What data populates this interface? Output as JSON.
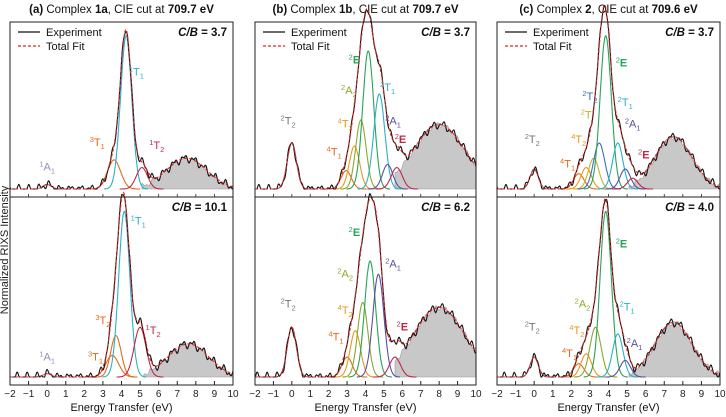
{
  "figure": {
    "ylabel": "Normalized RIXS Intensity",
    "legend": {
      "experiment": "Experiment",
      "fit": "Total Fit"
    }
  },
  "chart_data": [
    {
      "type": "line",
      "panel_label": "(a)",
      "title_pre": "Complex ",
      "title_bold": "1a",
      "title_mid": ", CIE cut at ",
      "title_energy": "709.7 eV",
      "xlabel": "Energy Transfer (eV)",
      "xlim": [
        -2,
        10
      ],
      "xticks": [
        -2,
        -1,
        0,
        1,
        2,
        3,
        4,
        5,
        6,
        7,
        8,
        9,
        10
      ],
      "subplots": [
        {
          "cb_prefix": "C/B",
          "cb_value": "= 3.7",
          "ymax": 1.05,
          "bg": {
            "center": 7.5,
            "width": 1.1,
            "amp": 0.2
          },
          "peaks": [
            {
              "pre": "1",
              "main": "A",
              "sub": "1",
              "center": 0.0,
              "amp": 0.03,
              "width": 0.22,
              "color": "#8f8fb8",
              "lx": 0.0,
              "ly": 0.12
            },
            {
              "pre": "3",
              "main": "T",
              "sub": "1",
              "center": 3.6,
              "amp": 0.19,
              "width": 0.35,
              "color": "#e66a1a",
              "lx": 2.7,
              "ly": 0.28
            },
            {
              "pre": "1",
              "main": "T",
              "sub": "1",
              "center": 4.25,
              "amp": 1.0,
              "width": 0.3,
              "color": "#2bb1c9",
              "lx": 4.8,
              "ly": 0.74
            },
            {
              "pre": "1",
              "main": "T",
              "sub": "2",
              "center": 5.1,
              "amp": 0.14,
              "width": 0.3,
              "color": "#c0284b",
              "lx": 5.9,
              "ly": 0.26
            }
          ]
        },
        {
          "cb_prefix": "C/B",
          "cb_value": "= 10.1",
          "ymax": 1.05,
          "bg": {
            "center": 7.6,
            "width": 1.1,
            "amp": 0.2
          },
          "peaks": [
            {
              "pre": "1",
              "main": "A",
              "sub": "1",
              "center": 0.0,
              "amp": 0.02,
              "width": 0.22,
              "color": "#8f8fb8",
              "lx": 0.0,
              "ly": 0.1
            },
            {
              "pre": "3",
              "main": "T",
              "sub": "1",
              "center": 3.5,
              "amp": 0.13,
              "width": 0.35,
              "color": "#e66a1a",
              "lx": 2.6,
              "ly": 0.1
            },
            {
              "pre": "3",
              "main": "T",
              "sub": "2",
              "center": 3.7,
              "amp": 0.25,
              "width": 0.28,
              "color": "#e66a1a",
              "lx": 3.0,
              "ly": 0.32
            },
            {
              "pre": "1",
              "main": "T",
              "sub": "1",
              "center": 4.15,
              "amp": 1.0,
              "width": 0.3,
              "color": "#2bb1c9",
              "lx": 4.9,
              "ly": 0.92
            },
            {
              "pre": "1",
              "main": "T",
              "sub": "2",
              "center": 5.0,
              "amp": 0.3,
              "width": 0.32,
              "color": "#c0284b",
              "lx": 5.7,
              "ly": 0.26
            }
          ]
        }
      ]
    },
    {
      "type": "line",
      "panel_label": "(b)",
      "title_pre": "Complex ",
      "title_bold": "1b",
      "title_mid": ", CIE cut at ",
      "title_energy": "709.7 eV",
      "xlabel": "Energy Transfer (eV)",
      "xlim": [
        -2,
        10
      ],
      "xticks": [
        -2,
        -1,
        0,
        1,
        2,
        3,
        4,
        5,
        6,
        7,
        8,
        9,
        10
      ],
      "subplots": [
        {
          "cb_prefix": "C/B",
          "cb_value": "= 3.7",
          "ymax": 1.05,
          "bg": {
            "center": 8.0,
            "width": 1.4,
            "amp": 0.42
          },
          "peaks": [
            {
              "pre": "2",
              "main": "T",
              "sub": "2",
              "center": 0.0,
              "amp": 0.3,
              "width": 0.25,
              "color": "#777777",
              "lx": -0.2,
              "ly": 0.42
            },
            {
              "pre": "4",
              "main": "T",
              "sub": "1",
              "center": 2.95,
              "amp": 0.12,
              "width": 0.28,
              "color": "#e66a1a",
              "lx": 2.3,
              "ly": 0.22
            },
            {
              "pre": "4",
              "main": "T",
              "sub": "2",
              "center": 3.4,
              "amp": 0.28,
              "width": 0.28,
              "color": "#e69a1a",
              "lx": 2.9,
              "ly": 0.4
            },
            {
              "pre": "2",
              "main": "A",
              "sub": "2",
              "center": 3.75,
              "amp": 0.45,
              "width": 0.28,
              "color": "#8aa82a",
              "lx": 3.1,
              "ly": 0.62
            },
            {
              "pre": "2",
              "main": "E",
              "sub": "",
              "center": 4.15,
              "amp": 0.9,
              "width": 0.3,
              "color": "#27a35a",
              "lx": 3.4,
              "ly": 0.82
            },
            {
              "pre": "2",
              "main": "T",
              "sub": "1",
              "center": 4.75,
              "amp": 0.62,
              "width": 0.3,
              "color": "#2bb1c9",
              "lx": 5.2,
              "ly": 0.64
            },
            {
              "pre": "2",
              "main": "A",
              "sub": "1",
              "center": 5.2,
              "amp": 0.16,
              "width": 0.28,
              "color": "#5a4fa0",
              "lx": 5.5,
              "ly": 0.42
            },
            {
              "pre": "2",
              "main": "E",
              "sub": "",
              "center": 5.7,
              "amp": 0.14,
              "width": 0.3,
              "color": "#c0284b",
              "lx": 5.9,
              "ly": 0.3
            }
          ]
        },
        {
          "cb_prefix": "C/B",
          "cb_value": "= 6.2",
          "ymax": 1.05,
          "bg": {
            "center": 8.0,
            "width": 1.4,
            "amp": 0.42
          },
          "peaks": [
            {
              "pre": "2",
              "main": "T",
              "sub": "2",
              "center": 0.0,
              "amp": 0.3,
              "width": 0.25,
              "color": "#777777",
              "lx": -0.2,
              "ly": 0.42
            },
            {
              "pre": "4",
              "main": "T",
              "sub": "1",
              "center": 3.0,
              "amp": 0.12,
              "width": 0.28,
              "color": "#e66a1a",
              "lx": 2.4,
              "ly": 0.22
            },
            {
              "pre": "4",
              "main": "T",
              "sub": "2",
              "center": 3.45,
              "amp": 0.28,
              "width": 0.28,
              "color": "#e69a1a",
              "lx": 2.9,
              "ly": 0.38
            },
            {
              "pre": "2",
              "main": "A",
              "sub": "2",
              "center": 3.85,
              "amp": 0.45,
              "width": 0.28,
              "color": "#8aa82a",
              "lx": 2.9,
              "ly": 0.6
            },
            {
              "pre": "2",
              "main": "E",
              "sub": "",
              "center": 4.25,
              "amp": 0.7,
              "width": 0.3,
              "color": "#27a35a",
              "lx": 3.4,
              "ly": 0.85
            },
            {
              "pre": "2",
              "main": "A",
              "sub": "1",
              "center": 4.7,
              "amp": 0.62,
              "width": 0.3,
              "color": "#5a4fa0",
              "lx": 5.5,
              "ly": 0.66
            },
            {
              "pre": "2",
              "main": "E",
              "sub": "",
              "center": 5.6,
              "amp": 0.12,
              "width": 0.3,
              "color": "#c0284b",
              "lx": 6.0,
              "ly": 0.28
            }
          ]
        }
      ]
    },
    {
      "type": "line",
      "panel_label": "(c)",
      "title_pre": "Complex ",
      "title_bold": "2",
      "title_mid": ", CIE cut at ",
      "title_energy": "709.6 eV",
      "xlabel": "Energy Transfer (eV)",
      "xlim": [
        -2,
        10
      ],
      "xticks": [
        -2,
        -1,
        0,
        1,
        2,
        3,
        4,
        5,
        6,
        7,
        8,
        9,
        10
      ],
      "subplots": [
        {
          "cb_prefix": "C/B",
          "cb_value": "= 3.7",
          "ymax": 1.05,
          "bg": {
            "center": 7.5,
            "width": 1.0,
            "amp": 0.34
          },
          "peaks": [
            {
              "pre": "2",
              "main": "T",
              "sub": "2",
              "center": 0.0,
              "amp": 0.13,
              "width": 0.22,
              "color": "#777777",
              "lx": -0.1,
              "ly": 0.3
            },
            {
              "pre": "4",
              "main": "T",
              "sub": "1",
              "center": 2.4,
              "amp": 0.1,
              "width": 0.28,
              "color": "#e66a1a",
              "lx": 1.8,
              "ly": 0.14
            },
            {
              "pre": "4",
              "main": "T",
              "sub": "2",
              "center": 2.8,
              "amp": 0.14,
              "width": 0.28,
              "color": "#e69a1a",
              "lx": 2.4,
              "ly": 0.3
            },
            {
              "pre": "2",
              "main": "T",
              "sub": "",
              "center": 3.2,
              "amp": 0.2,
              "width": 0.28,
              "color": "#c9b02a",
              "lx": 2.8,
              "ly": 0.46
            },
            {
              "pre": "2",
              "main": "T",
              "sub": "2",
              "center": 3.5,
              "amp": 0.3,
              "width": 0.3,
              "color": "#3b6fb8",
              "lx": 3.0,
              "ly": 0.58
            },
            {
              "pre": "2",
              "main": "E",
              "sub": "",
              "center": 3.85,
              "amp": 1.0,
              "width": 0.3,
              "color": "#27a35a",
              "lx": 4.7,
              "ly": 0.8
            },
            {
              "pre": "2",
              "main": "T",
              "sub": "1",
              "center": 4.5,
              "amp": 0.3,
              "width": 0.28,
              "color": "#2bb1c9",
              "lx": 4.9,
              "ly": 0.54
            },
            {
              "pre": "2",
              "main": "A",
              "sub": "1",
              "center": 4.9,
              "amp": 0.13,
              "width": 0.28,
              "color": "#5a4fa0",
              "lx": 5.3,
              "ly": 0.4
            },
            {
              "pre": "2",
              "main": "E",
              "sub": "",
              "center": 5.3,
              "amp": 0.07,
              "width": 0.28,
              "color": "#c0284b",
              "lx": 5.9,
              "ly": 0.2
            }
          ]
        },
        {
          "cb_prefix": "C/B",
          "cb_value": "= 4.0",
          "ymax": 1.05,
          "bg": {
            "center": 7.5,
            "width": 1.0,
            "amp": 0.33
          },
          "peaks": [
            {
              "pre": "2",
              "main": "T",
              "sub": "2",
              "center": 0.0,
              "amp": 0.12,
              "width": 0.22,
              "color": "#777777",
              "lx": -0.1,
              "ly": 0.28
            },
            {
              "pre": "4",
              "main": "T",
              "sub": "1",
              "center": 2.4,
              "amp": 0.08,
              "width": 0.28,
              "color": "#e66a1a",
              "lx": 1.9,
              "ly": 0.12
            },
            {
              "pre": "4",
              "main": "T",
              "sub": "2",
              "center": 2.8,
              "amp": 0.14,
              "width": 0.28,
              "color": "#e69a1a",
              "lx": 2.3,
              "ly": 0.26
            },
            {
              "pre": "2",
              "main": "A",
              "sub": "2",
              "center": 3.3,
              "amp": 0.3,
              "width": 0.3,
              "color": "#8aa82a",
              "lx": 2.6,
              "ly": 0.42
            },
            {
              "pre": "2",
              "main": "E",
              "sub": "",
              "center": 3.85,
              "amp": 1.0,
              "width": 0.3,
              "color": "#27a35a",
              "lx": 4.7,
              "ly": 0.78
            },
            {
              "pre": "2",
              "main": "T",
              "sub": "1",
              "center": 4.5,
              "amp": 0.26,
              "width": 0.28,
              "color": "#2bb1c9",
              "lx": 5.0,
              "ly": 0.4
            },
            {
              "pre": "2",
              "main": "A",
              "sub": "1",
              "center": 4.9,
              "amp": 0.1,
              "width": 0.28,
              "color": "#5a4fa0",
              "lx": 5.4,
              "ly": 0.18
            }
          ]
        }
      ]
    }
  ]
}
